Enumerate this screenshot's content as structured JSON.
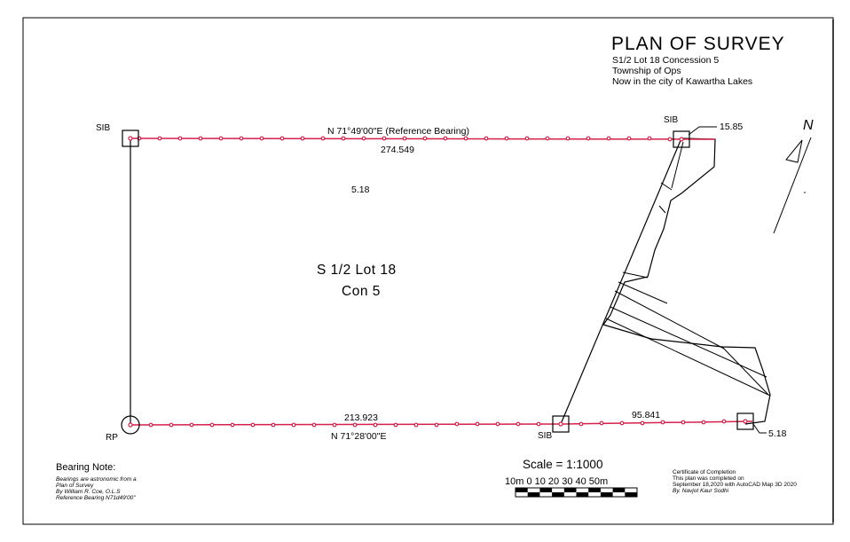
{
  "title": {
    "heading": "PLAN OF SURVEY",
    "line1": "S1/2 Lot 18 Concession 5",
    "line2": "Township of Ops",
    "line3": "Now in the city of Kawartha Lakes"
  },
  "north_arrow": {
    "label": "N"
  },
  "monuments": {
    "sib_top_left": "SIB",
    "sib_top_right": "SIB",
    "sib_bottom_mid": "SIB",
    "rp": "RP"
  },
  "dimensions": {
    "top_bearing": "N 71°49'00\"E (Reference Bearing)",
    "top_distance": "274.549",
    "top_right_offset": "15.85",
    "interior_value": "5.18",
    "bottom_distance_left": "213.923",
    "bottom_bearing": "N 71°28'00\"E",
    "bottom_distance_right": "95.841",
    "bottom_right_offset": "5.18"
  },
  "parcel": {
    "line1": "S 1/2 Lot 18",
    "line2": "Con 5"
  },
  "bearing_note": {
    "heading": "Bearing Note:",
    "line1": "Bearings are astronomic from a",
    "line2": "Plan of Survey",
    "line3": "By William R. Coe, O.L.S",
    "line4": "Reference Bearing N71d49'00\""
  },
  "scale": {
    "label": "Scale  =  1:1000",
    "ticks": "10m  0   10   20   30  40  50m"
  },
  "certificate": {
    "heading": "Certificate of Completion",
    "line1": "This plan was completed on",
    "line2": "September 18,2020 with AutoCAD Map 3D 2020",
    "line3": "By. Navjot Kaur Sodhi"
  },
  "colors": {
    "boundary": "#d6204a",
    "ink": "#000000"
  }
}
